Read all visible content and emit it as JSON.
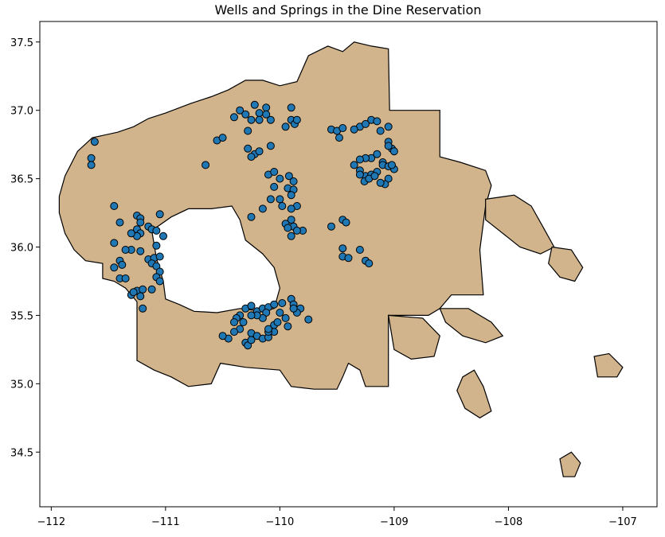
{
  "chart_data": {
    "type": "scatter",
    "title": "Wells and Springs in the Dine Reservation",
    "xlabel": "",
    "ylabel": "",
    "xlim": [
      -112.1,
      -106.7
    ],
    "ylim": [
      34.1,
      37.65
    ],
    "x_ticks": [
      -112,
      -111,
      -110,
      -109,
      -108,
      -107
    ],
    "x_tick_labels": [
      "−112",
      "−111",
      "−110",
      "−109",
      "−108",
      "−107"
    ],
    "y_ticks": [
      34.5,
      35.0,
      35.5,
      36.0,
      36.5,
      37.0,
      37.5
    ],
    "y_tick_labels": [
      "34.5",
      "35.0",
      "35.5",
      "36.0",
      "36.5",
      "37.0",
      "37.5"
    ],
    "grid": false,
    "colors": {
      "land_fill": "#d2b48c",
      "land_edge": "#000000",
      "point_fill": "#1f77b4",
      "point_edge": "#000000"
    },
    "reservation_outline": [
      [
        -111.93,
        36.37
      ],
      [
        -111.88,
        36.52
      ],
      [
        -111.77,
        36.7
      ],
      [
        -111.64,
        36.8
      ],
      [
        -111.42,
        36.84
      ],
      [
        -111.28,
        36.88
      ],
      [
        -111.15,
        36.94
      ],
      [
        -111.0,
        36.98
      ],
      [
        -110.78,
        37.05
      ],
      [
        -110.6,
        37.1
      ],
      [
        -110.45,
        37.15
      ],
      [
        -110.3,
        37.22
      ],
      [
        -110.15,
        37.22
      ],
      [
        -110.0,
        37.18
      ],
      [
        -109.85,
        37.21
      ],
      [
        -109.75,
        37.4
      ],
      [
        -109.58,
        37.47
      ],
      [
        -109.45,
        37.43
      ],
      [
        -109.35,
        37.5
      ],
      [
        -109.2,
        37.47
      ],
      [
        -109.05,
        37.45
      ],
      [
        -109.04,
        37.0
      ],
      [
        -108.6,
        37.0
      ],
      [
        -108.6,
        36.66
      ],
      [
        -108.42,
        36.62
      ],
      [
        -108.2,
        36.56
      ],
      [
        -108.15,
        36.45
      ],
      [
        -108.2,
        36.3
      ],
      [
        -108.25,
        35.98
      ],
      [
        -108.22,
        35.65
      ],
      [
        -108.5,
        35.65
      ],
      [
        -108.6,
        35.55
      ],
      [
        -108.7,
        35.5
      ],
      [
        -108.92,
        35.5
      ],
      [
        -109.05,
        35.5
      ],
      [
        -109.05,
        34.98
      ],
      [
        -109.25,
        34.98
      ],
      [
        -109.3,
        35.1
      ],
      [
        -109.4,
        35.15
      ],
      [
        -109.45,
        35.05
      ],
      [
        -109.5,
        34.96
      ],
      [
        -109.7,
        34.96
      ],
      [
        -109.9,
        34.98
      ],
      [
        -110.0,
        35.1
      ],
      [
        -110.3,
        35.12
      ],
      [
        -110.52,
        35.15
      ],
      [
        -110.6,
        35.0
      ],
      [
        -110.8,
        34.98
      ],
      [
        -110.95,
        35.05
      ],
      [
        -111.1,
        35.1
      ],
      [
        -111.25,
        35.17
      ],
      [
        -111.25,
        35.6
      ],
      [
        -111.35,
        35.7
      ],
      [
        -111.45,
        35.75
      ],
      [
        -111.55,
        35.77
      ],
      [
        -111.55,
        35.88
      ],
      [
        -111.7,
        35.9
      ],
      [
        -111.8,
        35.98
      ],
      [
        -111.88,
        36.1
      ],
      [
        -111.93,
        36.25
      ]
    ],
    "reservation_holes": [
      [
        [
          -111.12,
          36.12
        ],
        [
          -110.95,
          36.22
        ],
        [
          -110.8,
          36.28
        ],
        [
          -110.6,
          36.28
        ],
        [
          -110.42,
          36.3
        ],
        [
          -110.35,
          36.2
        ],
        [
          -110.3,
          36.05
        ],
        [
          -110.15,
          35.95
        ],
        [
          -110.05,
          35.85
        ],
        [
          -110.0,
          35.7
        ],
        [
          -110.05,
          35.55
        ],
        [
          -110.15,
          35.53
        ],
        [
          -110.35,
          35.55
        ],
        [
          -110.55,
          35.52
        ],
        [
          -110.75,
          35.53
        ],
        [
          -110.88,
          35.58
        ],
        [
          -111.0,
          35.62
        ],
        [
          -111.02,
          35.75
        ],
        [
          -111.08,
          35.92
        ],
        [
          -111.1,
          36.02
        ]
      ]
    ],
    "small_parcels": [
      [
        [
          -107.25,
          35.2
        ],
        [
          -107.12,
          35.22
        ],
        [
          -107.0,
          35.12
        ],
        [
          -107.05,
          35.05
        ],
        [
          -107.22,
          35.05
        ]
      ],
      [
        [
          -107.55,
          34.45
        ],
        [
          -107.45,
          34.5
        ],
        [
          -107.37,
          34.42
        ],
        [
          -107.42,
          34.32
        ],
        [
          -107.52,
          34.32
        ]
      ],
      [
        [
          -108.4,
          35.05
        ],
        [
          -108.3,
          35.1
        ],
        [
          -108.22,
          34.98
        ],
        [
          -108.15,
          34.8
        ],
        [
          -108.25,
          34.75
        ],
        [
          -108.38,
          34.82
        ],
        [
          -108.45,
          34.95
        ]
      ],
      [
        [
          -108.2,
          36.35
        ],
        [
          -107.95,
          36.38
        ],
        [
          -107.8,
          36.3
        ],
        [
          -107.7,
          36.15
        ],
        [
          -107.6,
          36.0
        ],
        [
          -107.72,
          35.95
        ],
        [
          -107.9,
          36.0
        ],
        [
          -108.05,
          36.1
        ],
        [
          -108.2,
          36.2
        ]
      ],
      [
        [
          -107.62,
          36.0
        ],
        [
          -107.45,
          35.98
        ],
        [
          -107.35,
          35.85
        ],
        [
          -107.42,
          35.75
        ],
        [
          -107.55,
          35.78
        ],
        [
          -107.65,
          35.88
        ]
      ],
      [
        [
          -109.05,
          35.5
        ],
        [
          -108.75,
          35.48
        ],
        [
          -108.6,
          35.35
        ],
        [
          -108.65,
          35.2
        ],
        [
          -108.85,
          35.18
        ],
        [
          -109.0,
          35.25
        ]
      ],
      [
        [
          -108.6,
          35.55
        ],
        [
          -108.35,
          35.55
        ],
        [
          -108.15,
          35.45
        ],
        [
          -108.05,
          35.35
        ],
        [
          -108.2,
          35.3
        ],
        [
          -108.4,
          35.35
        ],
        [
          -108.55,
          35.45
        ]
      ]
    ],
    "points": [
      [
        -110.35,
        37.0
      ],
      [
        -110.3,
        36.97
      ],
      [
        -110.22,
        37.04
      ],
      [
        -110.18,
        36.98
      ],
      [
        -110.25,
        36.93
      ],
      [
        -110.12,
        37.02
      ],
      [
        -110.12,
        36.97
      ],
      [
        -110.08,
        36.93
      ],
      [
        -110.18,
        36.93
      ],
      [
        -110.28,
        36.85
      ],
      [
        -110.4,
        36.95
      ],
      [
        -109.9,
        37.02
      ],
      [
        -109.95,
        36.88
      ],
      [
        -109.9,
        36.93
      ],
      [
        -109.87,
        36.9
      ],
      [
        -109.85,
        36.93
      ],
      [
        -109.55,
        36.86
      ],
      [
        -109.5,
        36.85
      ],
      [
        -109.45,
        36.87
      ],
      [
        -109.48,
        36.8
      ],
      [
        -109.3,
        36.88
      ],
      [
        -109.25,
        36.9
      ],
      [
        -109.2,
        36.93
      ],
      [
        -109.15,
        36.92
      ],
      [
        -109.12,
        36.85
      ],
      [
        -109.05,
        36.88
      ],
      [
        -109.35,
        36.86
      ],
      [
        -110.55,
        36.78
      ],
      [
        -110.5,
        36.8
      ],
      [
        -110.65,
        36.6
      ],
      [
        -110.28,
        36.72
      ],
      [
        -110.22,
        36.68
      ],
      [
        -110.18,
        36.7
      ],
      [
        -110.25,
        36.66
      ],
      [
        -110.08,
        36.74
      ],
      [
        -109.05,
        36.77
      ],
      [
        -109.02,
        36.72
      ],
      [
        -109.0,
        36.7
      ],
      [
        -109.05,
        36.74
      ],
      [
        -109.1,
        36.62
      ],
      [
        -109.15,
        36.68
      ],
      [
        -109.2,
        36.65
      ],
      [
        -109.25,
        36.65
      ],
      [
        -109.3,
        36.64
      ],
      [
        -109.35,
        36.6
      ],
      [
        -109.3,
        36.56
      ],
      [
        -109.25,
        36.52
      ],
      [
        -109.2,
        36.53
      ],
      [
        -109.15,
        36.55
      ],
      [
        -109.1,
        36.6
      ],
      [
        -109.05,
        36.59
      ],
      [
        -109.0,
        36.57
      ],
      [
        -109.05,
        36.5
      ],
      [
        -109.08,
        36.46
      ],
      [
        -109.12,
        36.47
      ],
      [
        -109.3,
        36.53
      ],
      [
        -109.26,
        36.48
      ],
      [
        -109.22,
        36.5
      ],
      [
        -109.17,
        36.52
      ],
      [
        -109.02,
        36.6
      ],
      [
        -110.1,
        36.53
      ],
      [
        -110.05,
        36.55
      ],
      [
        -110.0,
        36.5
      ],
      [
        -109.92,
        36.52
      ],
      [
        -109.88,
        36.48
      ],
      [
        -109.93,
        36.43
      ],
      [
        -109.88,
        36.42
      ],
      [
        -109.9,
        36.38
      ],
      [
        -110.05,
        36.44
      ],
      [
        -110.08,
        36.35
      ],
      [
        -110.0,
        36.35
      ],
      [
        -109.98,
        36.3
      ],
      [
        -109.85,
        36.3
      ],
      [
        -109.9,
        36.28
      ],
      [
        -110.15,
        36.28
      ],
      [
        -110.25,
        36.22
      ],
      [
        -109.9,
        36.2
      ],
      [
        -109.95,
        36.17
      ],
      [
        -109.88,
        36.15
      ],
      [
        -109.8,
        36.12
      ],
      [
        -109.85,
        36.12
      ],
      [
        -109.9,
        36.08
      ],
      [
        -109.93,
        36.14
      ],
      [
        -109.55,
        36.15
      ],
      [
        -109.45,
        36.2
      ],
      [
        -109.42,
        36.18
      ],
      [
        -109.45,
        35.99
      ],
      [
        -109.45,
        35.93
      ],
      [
        -109.4,
        35.92
      ],
      [
        -109.3,
        35.98
      ],
      [
        -109.25,
        35.9
      ],
      [
        -109.22,
        35.88
      ],
      [
        -111.45,
        36.3
      ],
      [
        -111.4,
        36.18
      ],
      [
        -111.25,
        36.23
      ],
      [
        -111.22,
        36.21
      ],
      [
        -111.25,
        36.13
      ],
      [
        -111.22,
        36.1
      ],
      [
        -111.15,
        36.15
      ],
      [
        -111.12,
        36.13
      ],
      [
        -111.05,
        36.24
      ],
      [
        -111.08,
        36.12
      ],
      [
        -111.02,
        36.08
      ],
      [
        -111.25,
        36.08
      ],
      [
        -111.22,
        36.18
      ],
      [
        -111.3,
        36.1
      ],
      [
        -111.08,
        36.01
      ],
      [
        -111.45,
        36.03
      ],
      [
        -111.3,
        35.98
      ],
      [
        -111.22,
        35.97
      ],
      [
        -111.35,
        35.98
      ],
      [
        -111.15,
        35.91
      ],
      [
        -111.1,
        35.92
      ],
      [
        -111.05,
        35.93
      ],
      [
        -111.12,
        35.88
      ],
      [
        -111.08,
        35.86
      ],
      [
        -111.05,
        35.82
      ],
      [
        -111.08,
        35.78
      ],
      [
        -111.05,
        35.75
      ],
      [
        -111.4,
        35.9
      ],
      [
        -111.45,
        35.85
      ],
      [
        -111.38,
        35.87
      ],
      [
        -111.4,
        35.77
      ],
      [
        -111.35,
        35.77
      ],
      [
        -111.3,
        35.65
      ],
      [
        -111.25,
        35.68
      ],
      [
        -111.2,
        35.69
      ],
      [
        -111.22,
        35.64
      ],
      [
        -111.12,
        35.69
      ],
      [
        -111.2,
        35.55
      ],
      [
        -111.28,
        35.67
      ],
      [
        -110.3,
        35.55
      ],
      [
        -110.25,
        35.57
      ],
      [
        -110.2,
        35.53
      ],
      [
        -110.15,
        35.55
      ],
      [
        -110.1,
        35.56
      ],
      [
        -110.05,
        35.58
      ],
      [
        -109.98,
        35.59
      ],
      [
        -109.9,
        35.62
      ],
      [
        -109.88,
        35.58
      ],
      [
        -109.82,
        35.55
      ],
      [
        -109.85,
        35.52
      ],
      [
        -109.95,
        35.48
      ],
      [
        -110.12,
        35.52
      ],
      [
        -110.15,
        35.48
      ],
      [
        -110.2,
        35.5
      ],
      [
        -110.25,
        35.5
      ],
      [
        -110.35,
        35.5
      ],
      [
        -110.38,
        35.48
      ],
      [
        -110.4,
        35.45
      ],
      [
        -110.32,
        35.45
      ],
      [
        -110.35,
        35.4
      ],
      [
        -110.25,
        35.37
      ],
      [
        -110.2,
        35.35
      ],
      [
        -110.3,
        35.3
      ],
      [
        -110.28,
        35.28
      ],
      [
        -110.25,
        35.32
      ],
      [
        -110.15,
        35.33
      ],
      [
        -110.1,
        35.34
      ],
      [
        -110.05,
        35.38
      ],
      [
        -110.05,
        35.43
      ],
      [
        -110.02,
        35.45
      ],
      [
        -109.93,
        35.42
      ],
      [
        -110.4,
        35.38
      ],
      [
        -110.45,
        35.33
      ],
      [
        -110.5,
        35.35
      ],
      [
        -110.1,
        35.38
      ],
      [
        -110.1,
        35.4
      ],
      [
        -109.88,
        35.55
      ],
      [
        -109.75,
        35.47
      ],
      [
        -110.0,
        35.52
      ],
      [
        -111.65,
        36.65
      ],
      [
        -111.65,
        36.6
      ],
      [
        -111.62,
        36.77
      ]
    ]
  }
}
